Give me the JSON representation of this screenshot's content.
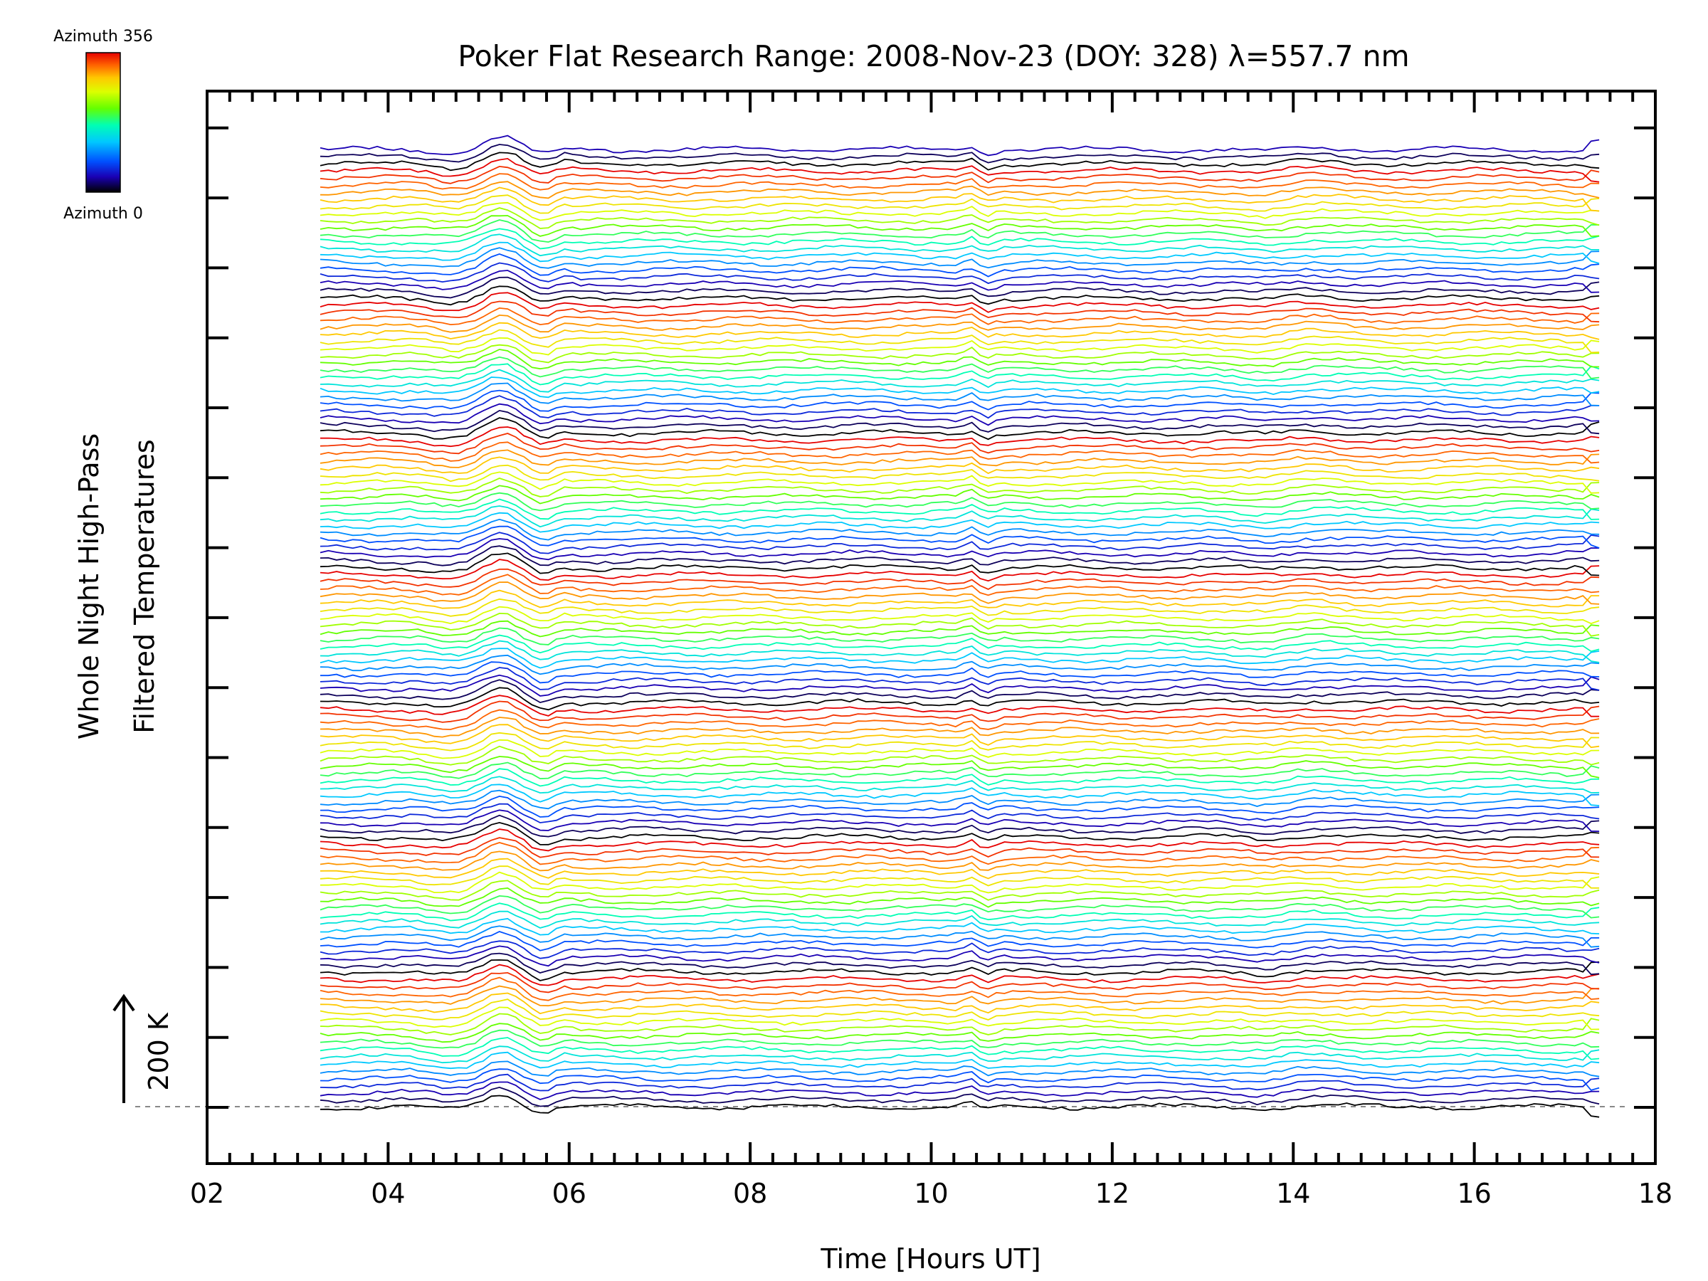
{
  "chart_data": {
    "type": "line",
    "title": "Poker Flat Research Range: 2008-Nov-23 (DOY: 328) λ=557.7 nm",
    "xlabel": "Time [Hours UT]",
    "ylabel_line1": "Whole Night High-Pass",
    "ylabel_line2": "Filtered Temperatures",
    "xlim": [
      2,
      18
    ],
    "x_ticks": [
      "02",
      "04",
      "06",
      "08",
      "10",
      "12",
      "14",
      "16",
      "18"
    ],
    "x_start": 3.25,
    "x_end": 17.4,
    "series_count": 136,
    "azimuth_cycle": 19,
    "scale_bar_label": "200 K",
    "colorbar": {
      "top_label": "Azimuth 356",
      "bottom_label": "Azimuth 0",
      "colors": [
        "#000000",
        "#1a00b4",
        "#0050ff",
        "#00c8ff",
        "#00ffb4",
        "#64ff00",
        "#dcff00",
        "#ffc800",
        "#ff6400",
        "#e60000"
      ]
    },
    "grid": false,
    "legend": "colorbar top-left"
  }
}
